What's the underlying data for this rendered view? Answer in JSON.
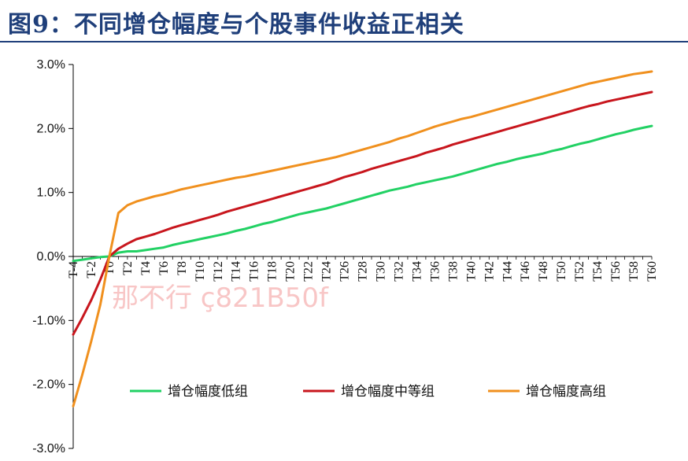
{
  "figure": {
    "title": "图9：不同增仓幅度与个股事件收益正相关",
    "watermark": "那不行 ç821B50f",
    "colors": {
      "title": "#1f3f7a",
      "axis": "#000000"
    }
  },
  "chart_data": {
    "type": "line",
    "title": "图9：不同增仓幅度与个股事件收益正相关",
    "xlabel": "",
    "ylabel": "",
    "x": [
      -4,
      -3,
      -2,
      -1,
      0,
      1,
      2,
      3,
      4,
      5,
      6,
      7,
      8,
      9,
      10,
      11,
      12,
      13,
      14,
      15,
      16,
      17,
      18,
      19,
      20,
      21,
      22,
      23,
      24,
      25,
      26,
      27,
      28,
      29,
      30,
      31,
      32,
      33,
      34,
      35,
      36,
      37,
      38,
      39,
      40,
      41,
      42,
      43,
      44,
      45,
      46,
      47,
      48,
      49,
      50,
      51,
      52,
      53,
      54,
      55,
      56,
      57,
      58,
      59,
      60
    ],
    "xlim": [
      -4,
      60
    ],
    "x_tick_labels": [
      "T-4",
      "T-2",
      "T0",
      "T2",
      "T4",
      "T6",
      "T8",
      "T10",
      "T12",
      "T14",
      "T16",
      "T18",
      "T20",
      "T22",
      "T24",
      "T26",
      "T28",
      "T30",
      "T32",
      "T34",
      "T36",
      "T38",
      "T40",
      "T42",
      "T44",
      "T46",
      "T48",
      "T50",
      "T52",
      "T54",
      "T56",
      "T58",
      "T60"
    ],
    "x_tick_values": [
      -4,
      -2,
      0,
      2,
      4,
      6,
      8,
      10,
      12,
      14,
      16,
      18,
      20,
      22,
      24,
      26,
      28,
      30,
      32,
      34,
      36,
      38,
      40,
      42,
      44,
      46,
      48,
      50,
      52,
      54,
      56,
      58,
      60
    ],
    "ylim": [
      -0.03,
      0.03
    ],
    "y_tick_values": [
      0.03,
      0.02,
      0.01,
      0.0,
      -0.01,
      -0.02,
      -0.03
    ],
    "y_tick_labels": [
      "3.0%",
      "2.0%",
      "1.0%",
      "0.0%",
      "-1.0%",
      "-2.0%",
      "-3.0%"
    ],
    "grid": false,
    "legend_position": "bottom-center",
    "series": [
      {
        "name": "增仓幅度低组",
        "color": "#22d164",
        "values": [
          -0.0007,
          -0.0005,
          -0.0003,
          -0.0001,
          0.0,
          0.0006,
          0.0008,
          0.0008,
          0.001,
          0.0012,
          0.0014,
          0.0018,
          0.0021,
          0.0024,
          0.0027,
          0.003,
          0.0033,
          0.0036,
          0.004,
          0.0043,
          0.0047,
          0.0051,
          0.0054,
          0.0058,
          0.0062,
          0.0066,
          0.0069,
          0.0072,
          0.0075,
          0.0079,
          0.0083,
          0.0087,
          0.0091,
          0.0095,
          0.0099,
          0.0103,
          0.0106,
          0.0109,
          0.0113,
          0.0116,
          0.0119,
          0.0122,
          0.0125,
          0.0129,
          0.0133,
          0.0137,
          0.0141,
          0.0145,
          0.0148,
          0.0152,
          0.0155,
          0.0158,
          0.0161,
          0.0165,
          0.0168,
          0.0172,
          0.0176,
          0.0179,
          0.0183,
          0.0187,
          0.0191,
          0.0194,
          0.0198,
          0.0201,
          0.0204
        ]
      },
      {
        "name": "增仓幅度中等组",
        "color": "#c8161d",
        "values": [
          -0.0122,
          -0.0096,
          -0.0068,
          -0.0036,
          0.0,
          0.0012,
          0.002,
          0.0027,
          0.0031,
          0.0035,
          0.004,
          0.0045,
          0.0049,
          0.0053,
          0.0057,
          0.0061,
          0.0065,
          0.007,
          0.0074,
          0.0078,
          0.0082,
          0.0086,
          0.009,
          0.0094,
          0.0098,
          0.0102,
          0.0106,
          0.011,
          0.0114,
          0.0119,
          0.0124,
          0.0128,
          0.0132,
          0.0137,
          0.0141,
          0.0145,
          0.0149,
          0.0153,
          0.0157,
          0.0162,
          0.0166,
          0.017,
          0.0175,
          0.0179,
          0.0183,
          0.0187,
          0.0191,
          0.0195,
          0.0199,
          0.0203,
          0.0207,
          0.0211,
          0.0215,
          0.0219,
          0.0223,
          0.0227,
          0.0231,
          0.0235,
          0.0238,
          0.0242,
          0.0245,
          0.0248,
          0.0251,
          0.0254,
          0.0257
        ]
      },
      {
        "name": "增仓幅度高组",
        "color": "#f0901e",
        "values": [
          -0.0234,
          -0.0185,
          -0.0132,
          -0.0075,
          0.0,
          0.0068,
          0.008,
          0.0086,
          0.009,
          0.0094,
          0.0097,
          0.0101,
          0.0105,
          0.0108,
          0.0111,
          0.0114,
          0.0117,
          0.012,
          0.0123,
          0.0125,
          0.0128,
          0.0131,
          0.0134,
          0.0137,
          0.014,
          0.0143,
          0.0146,
          0.0149,
          0.0152,
          0.0155,
          0.0159,
          0.0163,
          0.0167,
          0.0171,
          0.0175,
          0.0179,
          0.0184,
          0.0188,
          0.0193,
          0.0198,
          0.0203,
          0.0207,
          0.0211,
          0.0215,
          0.0218,
          0.0222,
          0.0226,
          0.023,
          0.0234,
          0.0238,
          0.0242,
          0.0246,
          0.025,
          0.0254,
          0.0258,
          0.0262,
          0.0266,
          0.027,
          0.0273,
          0.0276,
          0.0279,
          0.0282,
          0.0285,
          0.0287,
          0.0289
        ]
      }
    ]
  }
}
